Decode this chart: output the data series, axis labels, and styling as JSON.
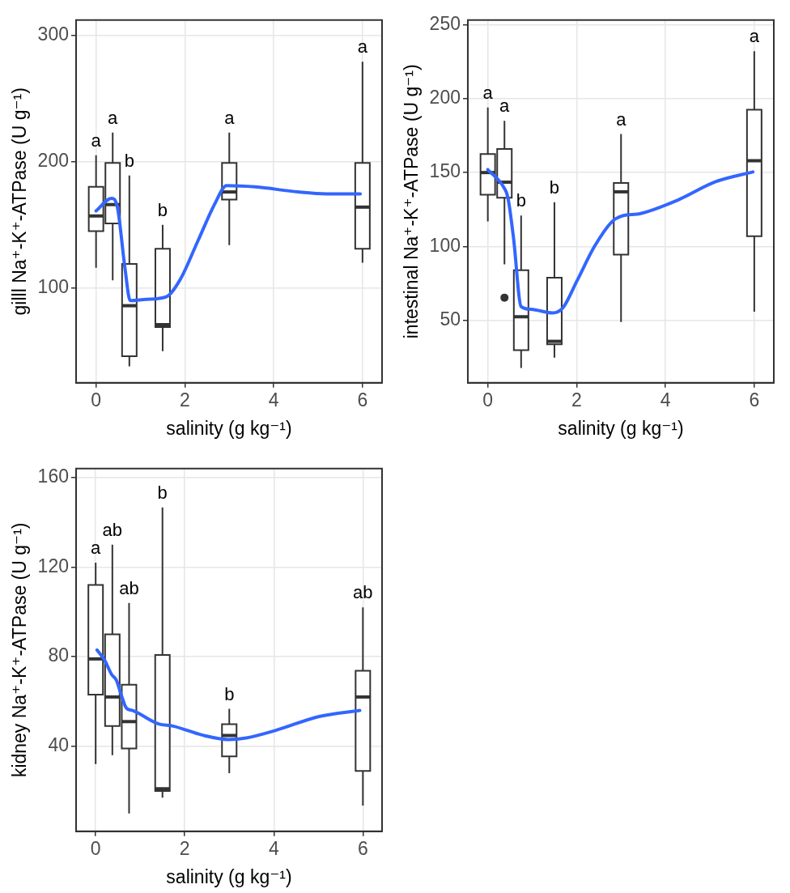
{
  "chart_data": [
    {
      "type": "box",
      "xlabel": "salinity (g kg⁻¹)",
      "ylabel": "gilll Na⁺-K⁺-ATPase (U g⁻¹)",
      "xlim": [
        -0.45,
        6.44
      ],
      "ylim": [
        25,
        312
      ],
      "xticks": [
        0,
        2,
        4,
        6
      ],
      "yticks": [
        100,
        200,
        300
      ],
      "grid": true,
      "series": [
        {
          "type": "box",
          "color": "#333333",
          "x": [
            0,
            0.375,
            0.75,
            1.5,
            3,
            6
          ],
          "boxes": [
            {
              "low": 116,
              "q1": 145,
              "median": 157,
              "q3": 180,
              "high": 205
            },
            {
              "low": 106,
              "q1": 151,
              "median": 166,
              "q3": 199,
              "high": 223
            },
            {
              "low": 38,
              "q1": 46,
              "median": 86,
              "q3": 119,
              "high": 189
            },
            {
              "low": 50,
              "q1": 69,
              "median": 71,
              "q3": 131,
              "high": 150
            },
            {
              "low": 134,
              "q1": 170,
              "median": 176,
              "q3": 199,
              "high": 223
            },
            {
              "low": 120,
              "q1": 131,
              "median": 164,
              "q3": 199,
              "high": 279
            }
          ]
        },
        {
          "type": "line",
          "color": "#3366ff",
          "x": [
            0,
            0.35,
            0.48,
            0.65,
            0.77,
            1.13,
            1.58,
            1.9,
            2.29,
            2.68,
            2.94,
            3.58,
            4.55,
            5.19,
            5.95
          ],
          "values": [
            161,
            171,
            164,
            116,
            90,
            91,
            93,
            107,
            137,
            167,
            181,
            180,
            176,
            174.5,
            174.5
          ]
        }
      ],
      "annotations": [
        "a",
        "a",
        "b",
        "b",
        "a",
        "a"
      ]
    },
    {
      "type": "box",
      "xlabel": "salinity (g kg⁻¹)",
      "ylabel": "intestinal Na⁺-K⁺-ATPase (U g⁻¹)",
      "xlim": [
        -0.45,
        6.44
      ],
      "ylim": [
        8,
        253
      ],
      "xticks": [
        0,
        2,
        4,
        6
      ],
      "yticks": [
        50,
        100,
        150,
        200,
        250
      ],
      "grid": true,
      "series": [
        {
          "type": "box",
          "color": "#333333",
          "x": [
            0,
            0.375,
            0.75,
            1.5,
            3,
            6
          ],
          "boxes": [
            {
              "low": 117,
              "q1": 135,
              "median": 150,
              "q3": 162.5,
              "high": 194
            },
            {
              "low": 88,
              "q1": 133,
              "median": 143.5,
              "q3": 166,
              "high": 185,
              "outliers": [
                65.5
              ]
            },
            {
              "low": 18,
              "q1": 30,
              "median": 52.6,
              "q3": 84,
              "high": 121
            },
            {
              "low": 25,
              "q1": 34,
              "median": 36,
              "q3": 79,
              "high": 130
            },
            {
              "low": 49,
              "q1": 94.6,
              "median": 137,
              "q3": 143,
              "high": 176
            },
            {
              "low": 56,
              "q1": 107,
              "median": 158,
              "q3": 192.5,
              "high": 232
            }
          ]
        },
        {
          "type": "line",
          "color": "#3366ff",
          "x": [
            0,
            0.36,
            0.45,
            0.58,
            0.75,
            0.97,
            1.46,
            1.69,
            2.01,
            2.4,
            2.79,
            2.99,
            3.44,
            4.29,
            5.13,
            5.97
          ],
          "values": [
            152,
            140,
            133.5,
            105.5,
            59.5,
            57.7,
            55.2,
            58.6,
            77,
            100,
            116.7,
            120.4,
            122.3,
            131.6,
            143.8,
            150.4
          ]
        }
      ],
      "annotations": [
        "a",
        "a",
        "b",
        "b",
        "a",
        "a"
      ]
    },
    {
      "type": "box",
      "xlabel": "salinity (g kg⁻¹)",
      "ylabel": "kidney Na⁺-K⁺-ATPase (U g⁻¹)",
      "xlim": [
        -0.44,
        6.43
      ],
      "ylim": [
        2,
        164
      ],
      "xticks": [
        0,
        2,
        4,
        6
      ],
      "yticks": [
        40,
        80,
        120,
        160
      ],
      "grid": true,
      "series": [
        {
          "type": "box",
          "color": "#333333",
          "x": [
            0,
            0.375,
            0.75,
            1.5,
            3,
            6
          ],
          "boxes": [
            {
              "low": 32,
              "q1": 63,
              "median": 79,
              "q3": 112,
              "high": 122
            },
            {
              "low": 36,
              "q1": 49,
              "median": 62,
              "q3": 90,
              "high": 130
            },
            {
              "low": 10,
              "q1": 39,
              "median": 51,
              "q3": 67.5,
              "high": 104
            },
            {
              "low": 17,
              "q1": 20,
              "median": 21,
              "q3": 80.8,
              "high": 146.7
            },
            {
              "low": 28,
              "q1": 35.5,
              "median": 44.8,
              "q3": 49.8,
              "high": 56.7
            },
            {
              "low": 13.5,
              "q1": 29,
              "median": 62,
              "q3": 73.7,
              "high": 102
            }
          ]
        },
        {
          "type": "line",
          "color": "#3366ff",
          "x": [
            0.03,
            0.2,
            0.36,
            0.46,
            0.59,
            0.69,
            0.82,
            1.41,
            1.74,
            2.39,
            2.98,
            3.38,
            4.03,
            5.02,
            5.93
          ],
          "values": [
            83,
            78.5,
            72,
            69.7,
            62,
            57,
            56,
            50,
            49,
            45,
            43,
            43.7,
            47,
            53.3,
            56
          ]
        }
      ],
      "annotations": [
        "a",
        "ab",
        "ab",
        "b",
        "b",
        "ab"
      ]
    }
  ]
}
